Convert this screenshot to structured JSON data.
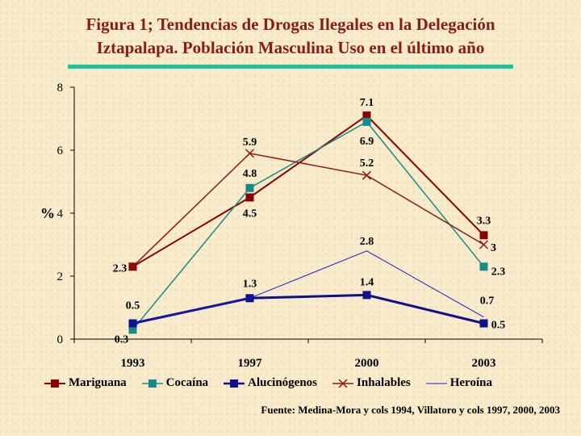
{
  "title_lines": [
    "Figura 1; Tendencias de Drogas Ilegales en  la Delegación",
    "Iztapalapa. Población Masculina Uso en el último año"
  ],
  "source": "Fuente: Medina-Mora y cols 1994, Villatoro y cols 1997, 2000, 2003",
  "colors": {
    "title": "#8b1a1a",
    "rule": "#19c49a",
    "axis": "#000000"
  },
  "chart_data": {
    "type": "line",
    "title": "Figura 1; Tendencias de Drogas Ilegales en  la Delegación Iztapalapa. Población Masculina Uso en el último año",
    "xlabel": "",
    "ylabel": "%",
    "categories": [
      "1993",
      "1997",
      "2000",
      "2003"
    ],
    "ylim": [
      0,
      8
    ],
    "yticks": [
      0,
      2,
      4,
      6,
      8
    ],
    "grid": false,
    "legend_position": "bottom",
    "series": [
      {
        "name": "Mariguana",
        "values": [
          2.3,
          4.5,
          7.1,
          3.3
        ],
        "labels": [
          "2.3",
          "4.5",
          "7.1",
          "3.3"
        ],
        "color": "#8b0000",
        "marker": "square",
        "width": 2
      },
      {
        "name": "Cocaína",
        "values": [
          0.3,
          4.8,
          6.9,
          2.3
        ],
        "labels": [
          "0.3",
          "4.8",
          "6.9",
          "2.3"
        ],
        "color": "#178a8a",
        "marker": "square",
        "width": 1.5
      },
      {
        "name": "Alucinógenos",
        "values": [
          0.5,
          1.3,
          1.4,
          0.5
        ],
        "labels": [
          "",
          "",
          "1.4",
          "0.5"
        ],
        "color": "#10108a",
        "marker": "square",
        "width": 3
      },
      {
        "name": "Inhalables",
        "values": [
          2.3,
          5.9,
          5.2,
          3.0
        ],
        "labels": [
          "",
          "5.9",
          "5.2",
          "3"
        ],
        "color": "#8b1a1a",
        "marker": "x",
        "width": 1.5
      },
      {
        "name": "Heroína",
        "values": [
          0.5,
          1.3,
          2.8,
          0.7
        ],
        "labels": [
          "0.5",
          "1.3",
          "2.8",
          "0.7"
        ],
        "color": "#1a1acd",
        "marker": "none",
        "width": 1
      }
    ]
  }
}
